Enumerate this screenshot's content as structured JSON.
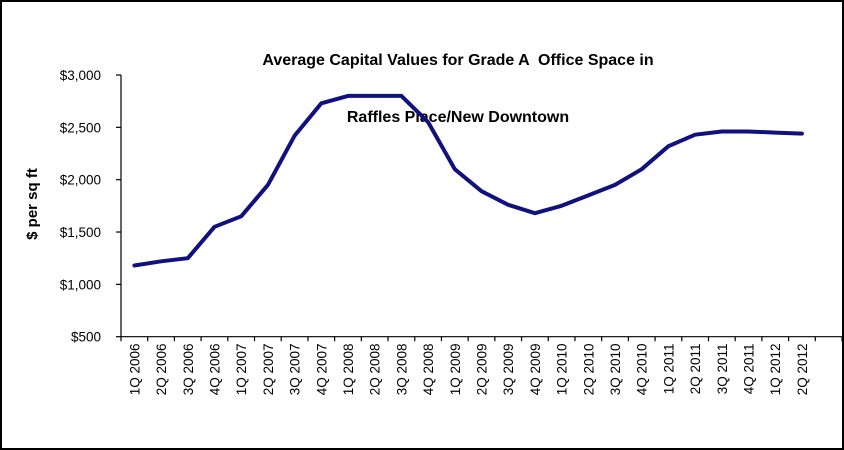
{
  "chart_data": {
    "type": "line",
    "title_line1": "Average Capital Values for Grade A  Office Space in",
    "title_line2": "Raffles Place/New Downtown",
    "ylabel": "$ per sq ft",
    "categories": [
      "1Q 2006",
      "2Q 2006",
      "3Q 2006",
      "4Q 2006",
      "1Q 2007",
      "2Q 2007",
      "3Q 2007",
      "4Q 2007",
      "1Q 2008",
      "2Q 2008",
      "3Q 2008",
      "4Q 2008",
      "1Q 2009",
      "2Q 2009",
      "3Q 2009",
      "4Q 2009",
      "1Q 2010",
      "2Q 2010",
      "3Q 2010",
      "4Q 2010",
      "1Q 2011",
      "2Q 2011",
      "3Q 2011",
      "4Q 2011",
      "1Q 2012",
      "2Q 2012"
    ],
    "values": [
      1180,
      1220,
      1250,
      1550,
      1650,
      1950,
      2420,
      2730,
      2800,
      2800,
      2800,
      2550,
      2100,
      1890,
      1760,
      1680,
      1750,
      1850,
      1950,
      2100,
      2320,
      2430,
      2460,
      2460,
      2450,
      2440
    ],
    "ylim": [
      500,
      3000
    ],
    "yticks": {
      "values": [
        500,
        1000,
        1500,
        2000,
        2500,
        3000
      ],
      "labels": [
        "$500",
        "$1,000",
        "$1,500",
        "$2,000",
        "$2,500",
        "$3,000"
      ]
    },
    "grid": false,
    "legend": "none",
    "line_color": "#10107e",
    "axis_color": "#000000",
    "background_color": "#ffffff"
  }
}
